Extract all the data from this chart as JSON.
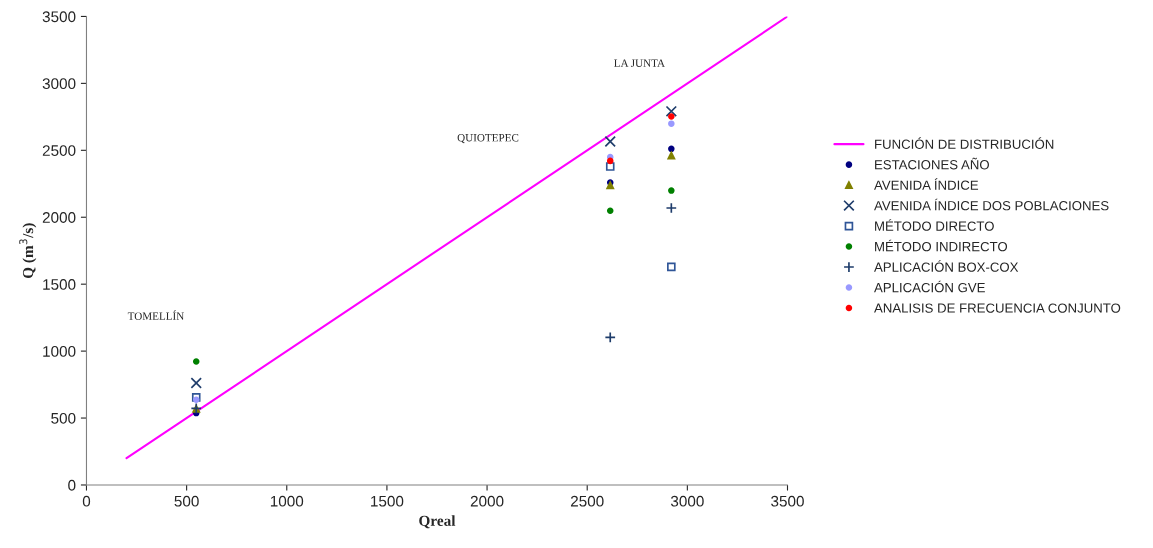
{
  "chart_data": {
    "type": "scatter",
    "xlabel": "Qreal",
    "ylabel": "Q (m$^{3}$/s)",
    "xlim": [
      0,
      3500
    ],
    "ylim": [
      0,
      3500
    ],
    "xticks": [
      0,
      500,
      1000,
      1500,
      2000,
      2500,
      3000,
      3500
    ],
    "yticks": [
      0,
      500,
      1000,
      1500,
      2000,
      2500,
      3000,
      3500
    ],
    "grid": false,
    "legend": "right",
    "x": [
      548,
      2615,
      2920
    ],
    "series": [
      {
        "name": "FUNCIÓN DE DISTRIBUCIÓN",
        "type": "line",
        "color": "#ff00ff",
        "marker": "none",
        "line_style": "solid",
        "x": [
          200,
          3500
        ],
        "values": [
          200,
          3500
        ]
      },
      {
        "name": "ESTACIONES AÑO",
        "color": "#000080",
        "marker": "circle",
        "values": [
          537,
          2259,
          2511
        ]
      },
      {
        "name": "AVENIDA ÍNDICE",
        "color": "#808000",
        "marker": "triangle",
        "values": [
          570,
          2239,
          2461
        ]
      },
      {
        "name": "AVENIDA ÍNDICE DOS POBLACIONES",
        "color": "#1f3d6b",
        "marker": "cross",
        "values": [
          762,
          2566,
          2791
        ]
      },
      {
        "name": "MÉTODO DIRECTO",
        "color": "#2f5597",
        "marker": "square",
        "values": [
          654,
          2379,
          1629
        ]
      },
      {
        "name": "MÉTODO INDIRECTO",
        "color": "#008000",
        "marker": "circle",
        "values": [
          922,
          2049,
          2199
        ]
      },
      {
        "name": "APLICACIÓN BOX-COX",
        "color": "#1f3d6b",
        "marker": "plus",
        "values": [
          572,
          1102,
          2069
        ]
      },
      {
        "name": "APLICACIÓN GVE",
        "color": "#9999ff",
        "marker": "circle",
        "values": [
          637,
          2449,
          2699
        ]
      },
      {
        "name": "ANALISIS DE FRECUENCIA CONJUNTO",
        "color": "#ff0000",
        "marker": "circle",
        "values": [
          null,
          2421,
          2753
        ]
      }
    ],
    "annotations": [
      "TOMELLÍN",
      "QUIOTEPEC",
      "LA JUNTA"
    ]
  }
}
